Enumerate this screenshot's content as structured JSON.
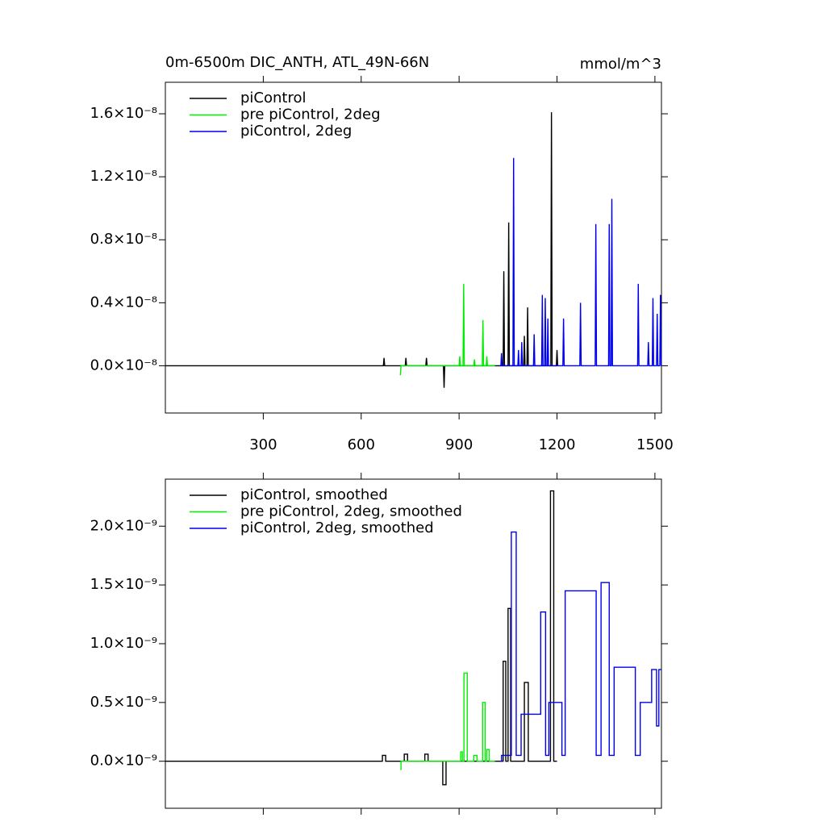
{
  "chart_data": [
    {
      "type": "line",
      "title": "0m-6500m DIC_ANTH, ATL_49N-66N",
      "units_label": "mmol/m^3",
      "xlim": [
        0,
        1520
      ],
      "xticks": [
        300,
        600,
        900,
        1200,
        1500
      ],
      "xtick_labels": true,
      "ylim": [
        -3e-09,
        1.8e-08
      ],
      "yticks": [
        {
          "value": 0,
          "label": "0.0×10⁻⁸"
        },
        {
          "value": 4e-09,
          "label": "0.4×10⁻⁸"
        },
        {
          "value": 8e-09,
          "label": "0.8×10⁻⁸"
        },
        {
          "value": 1.2e-08,
          "label": "1.2×10⁻⁸"
        },
        {
          "value": 1.6e-08,
          "label": "1.6×10⁻⁸"
        }
      ],
      "legend": "upper left",
      "series": [
        {
          "name": "piControl",
          "color": "#000000",
          "x": [
            0,
            668,
            670,
            672,
            735,
            737,
            739,
            798,
            800,
            802,
            852,
            854,
            856,
            1035,
            1037,
            1039,
            1050,
            1052,
            1054,
            1098,
            1100,
            1102,
            1108,
            1110,
            1112,
            1181,
            1183,
            1185,
            1198,
            1200,
            1202
          ],
          "values": [
            0,
            0,
            5e-10,
            0,
            0,
            5e-10,
            0,
            0,
            5e-10,
            0,
            0,
            -1.4e-09,
            0,
            0,
            6e-09,
            0,
            0,
            9.1e-09,
            0,
            0,
            1.9e-09,
            0,
            0,
            3.7e-09,
            0,
            0,
            1.61e-08,
            0,
            0,
            1e-09,
            0
          ]
        },
        {
          "name": "pre piControl, 2deg",
          "color": "#00ee00",
          "x": [
            720,
            722,
            724,
            900,
            902,
            904,
            912,
            914,
            916,
            945,
            947,
            949,
            971,
            973,
            975,
            983,
            985,
            987,
            1010
          ],
          "values": [
            -6e-10,
            0,
            0,
            0,
            6e-10,
            0,
            0,
            5.2e-09,
            0,
            0,
            4e-10,
            0,
            0,
            2.9e-09,
            0,
            0,
            6e-10,
            0,
            0
          ]
        },
        {
          "name": "piControl, 2deg",
          "color": "#0000ee",
          "x": [
            1025,
            1028,
            1030,
            1032,
            1065,
            1067,
            1069,
            1080,
            1082,
            1084,
            1090,
            1092,
            1094,
            1128,
            1130,
            1132,
            1153,
            1155,
            1157,
            1162,
            1164,
            1166,
            1170,
            1172,
            1174,
            1218,
            1220,
            1222,
            1270,
            1272,
            1274,
            1317,
            1319,
            1321,
            1358,
            1360,
            1362,
            1366,
            1368,
            1370,
            1447,
            1449,
            1451,
            1478,
            1480,
            1482,
            1492,
            1494,
            1496,
            1505,
            1507,
            1509,
            1515,
            1517,
            1519
          ],
          "values": [
            0,
            0,
            8e-10,
            0,
            0,
            1.32e-08,
            0,
            0,
            1e-09,
            0,
            0,
            1.5e-09,
            0,
            0,
            2e-09,
            0,
            0,
            4.5e-09,
            0,
            0,
            4.3e-09,
            0,
            0,
            3e-09,
            0,
            0,
            3e-09,
            0,
            0,
            4e-09,
            0,
            0,
            9e-09,
            0,
            0,
            9e-09,
            0,
            0,
            1.06e-08,
            0,
            0,
            5.2e-09,
            0,
            0,
            1.5e-09,
            0,
            0,
            4.3e-09,
            0,
            0,
            3.3e-09,
            0,
            0,
            4.5e-09,
            0
          ]
        }
      ]
    },
    {
      "type": "line",
      "xlim": [
        0,
        1520
      ],
      "xticks": [
        300,
        600,
        900,
        1200,
        1500
      ],
      "xtick_labels": false,
      "ylim": [
        -4e-10,
        2.4e-09
      ],
      "yticks": [
        {
          "value": 0,
          "label": "0.0×10⁻⁹"
        },
        {
          "value": 5e-10,
          "label": "0.5×10⁻⁹"
        },
        {
          "value": 1e-09,
          "label": "1.0×10⁻⁹"
        },
        {
          "value": 1.5e-09,
          "label": "1.5×10⁻⁹"
        },
        {
          "value": 2e-09,
          "label": "2.0×10⁻⁹"
        }
      ],
      "legend": "upper left",
      "series": [
        {
          "name": "piControl, smoothed",
          "color": "#000000",
          "x": [
            0,
            665,
            665,
            675,
            675,
            732,
            732,
            742,
            742,
            795,
            795,
            805,
            805,
            850,
            850,
            860,
            860,
            1035,
            1035,
            1043,
            1043,
            1050,
            1050,
            1058,
            1058,
            1100,
            1100,
            1112,
            1112,
            1180,
            1180,
            1190,
            1190,
            1200
          ],
          "values": [
            0,
            0,
            5e-11,
            5e-11,
            0,
            0,
            6e-11,
            6e-11,
            0,
            0,
            6e-11,
            6e-11,
            0,
            0,
            -2e-10,
            -2e-10,
            0,
            0,
            8.5e-10,
            8.5e-10,
            0,
            0,
            1.3e-09,
            1.3e-09,
            0,
            0,
            6.7e-10,
            6.7e-10,
            0,
            0,
            2.3e-09,
            2.3e-09,
            0,
            0
          ]
        },
        {
          "name": "pre piControl, 2deg, smoothed",
          "color": "#00ee00",
          "x": [
            720,
            722,
            722,
            905,
            905,
            910,
            910,
            915,
            915,
            925,
            925,
            945,
            945,
            955,
            955,
            972,
            972,
            980,
            980,
            985,
            985,
            992,
            992,
            1010
          ],
          "values": [
            -7e-11,
            -7e-11,
            0,
            0,
            8e-11,
            8e-11,
            0,
            0,
            7.5e-10,
            7.5e-10,
            0,
            0,
            5e-11,
            5e-11,
            0,
            0,
            5e-10,
            5e-10,
            0,
            0,
            1e-10,
            1e-10,
            0,
            0
          ]
        },
        {
          "name": "piControl, 2deg, smoothed",
          "color": "#0000ee",
          "x": [
            1025,
            1030,
            1030,
            1060,
            1060,
            1075,
            1075,
            1090,
            1090,
            1150,
            1150,
            1165,
            1165,
            1175,
            1175,
            1215,
            1215,
            1225,
            1225,
            1320,
            1320,
            1335,
            1335,
            1360,
            1360,
            1375,
            1375,
            1440,
            1440,
            1455,
            1455,
            1490,
            1490,
            1505,
            1505,
            1512,
            1512,
            1520
          ],
          "values": [
            0,
            0,
            5e-11,
            5e-11,
            1.95e-09,
            1.95e-09,
            5e-11,
            5e-11,
            4e-10,
            4e-10,
            1.27e-09,
            1.27e-09,
            5e-11,
            5e-11,
            5e-10,
            5e-10,
            5e-11,
            5e-11,
            1.45e-09,
            1.45e-09,
            5e-11,
            5e-11,
            1.52e-09,
            1.52e-09,
            5e-11,
            5e-11,
            8e-10,
            8e-10,
            5e-11,
            5e-11,
            5e-10,
            5e-10,
            7.8e-10,
            7.8e-10,
            3e-10,
            3e-10,
            7.8e-10,
            7.8e-10
          ]
        }
      ]
    }
  ]
}
